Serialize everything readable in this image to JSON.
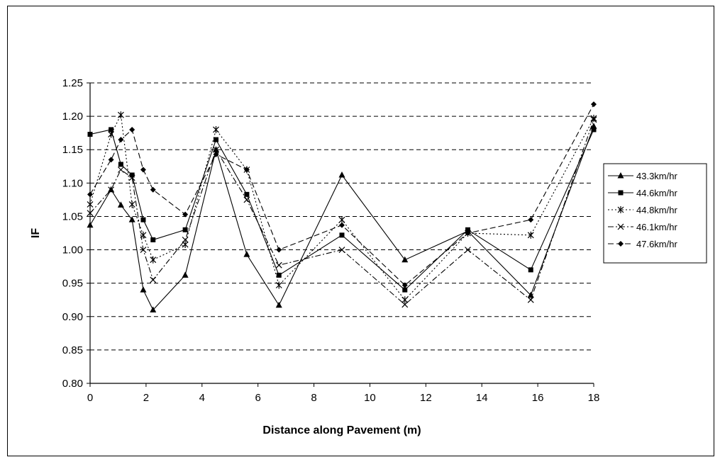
{
  "chart_data": {
    "type": "line",
    "title": "",
    "xlabel": "Distance along Pavement (m)",
    "ylabel": "IF",
    "xlim": [
      0,
      18
    ],
    "ylim": [
      0.8,
      1.25
    ],
    "xticks": [
      "0",
      "2",
      "4",
      "6",
      "8",
      "10",
      "12",
      "14",
      "16",
      "18"
    ],
    "yticks": [
      "0.80",
      "0.85",
      "0.90",
      "0.95",
      "1.00",
      "1.05",
      "1.10",
      "1.15",
      "1.20",
      "1.25"
    ],
    "grid": "horizontal dashed",
    "legend_position": "right",
    "series": [
      {
        "name": "43.3km/hr",
        "marker": "triangle",
        "dash": "solid",
        "x": [
          0,
          0.75,
          1.1,
          1.5,
          1.9,
          2.25,
          3.4,
          4.5,
          5.6,
          6.75,
          9.0,
          11.25,
          13.5,
          15.75,
          18.0
        ],
        "y": [
          1.037,
          1.09,
          1.067,
          1.045,
          0.94,
          0.91,
          0.962,
          1.15,
          0.993,
          0.917,
          1.112,
          0.985,
          1.028,
          0.932,
          1.185
        ]
      },
      {
        "name": "44.6km/hr",
        "marker": "square",
        "dash": "solid",
        "x": [
          0,
          0.75,
          1.1,
          1.5,
          1.9,
          2.25,
          3.4,
          4.5,
          5.6,
          6.75,
          9.0,
          11.25,
          13.5,
          15.75,
          18.0
        ],
        "y": [
          1.173,
          1.18,
          1.128,
          1.112,
          1.045,
          1.015,
          1.03,
          1.165,
          1.083,
          0.962,
          1.022,
          0.94,
          1.03,
          0.97,
          1.18
        ]
      },
      {
        "name": "44.8km/hr",
        "marker": "star",
        "dash": "dotted",
        "x": [
          0,
          0.75,
          1.1,
          1.5,
          1.9,
          2.25,
          3.4,
          4.5,
          5.6,
          6.75,
          9.0,
          11.25,
          13.5,
          15.75,
          18.0
        ],
        "y": [
          1.068,
          1.173,
          1.202,
          1.068,
          1.022,
          0.985,
          1.008,
          1.18,
          1.12,
          0.947,
          1.045,
          0.925,
          1.025,
          1.022,
          1.197
        ]
      },
      {
        "name": "46.1km/hr",
        "marker": "x",
        "dash": "dashdot",
        "x": [
          0,
          0.75,
          1.1,
          1.5,
          1.9,
          2.25,
          3.4,
          4.5,
          5.6,
          6.75,
          9.0,
          11.25,
          13.5,
          15.75,
          18.0
        ],
        "y": [
          1.055,
          1.09,
          1.12,
          1.108,
          1.0,
          0.955,
          1.015,
          1.15,
          1.075,
          0.977,
          1.0,
          0.918,
          1.0,
          0.925,
          1.195
        ]
      },
      {
        "name": "47.6km/hr",
        "marker": "diamond",
        "dash": "dashed",
        "x": [
          0,
          0.75,
          1.1,
          1.5,
          1.9,
          2.25,
          3.4,
          4.5,
          5.6,
          6.75,
          9.0,
          11.25,
          13.5,
          15.75,
          18.0
        ],
        "y": [
          1.083,
          1.135,
          1.165,
          1.18,
          1.12,
          1.09,
          1.053,
          1.143,
          1.12,
          1.0,
          1.037,
          0.947,
          1.025,
          1.045,
          1.218
        ]
      }
    ]
  }
}
